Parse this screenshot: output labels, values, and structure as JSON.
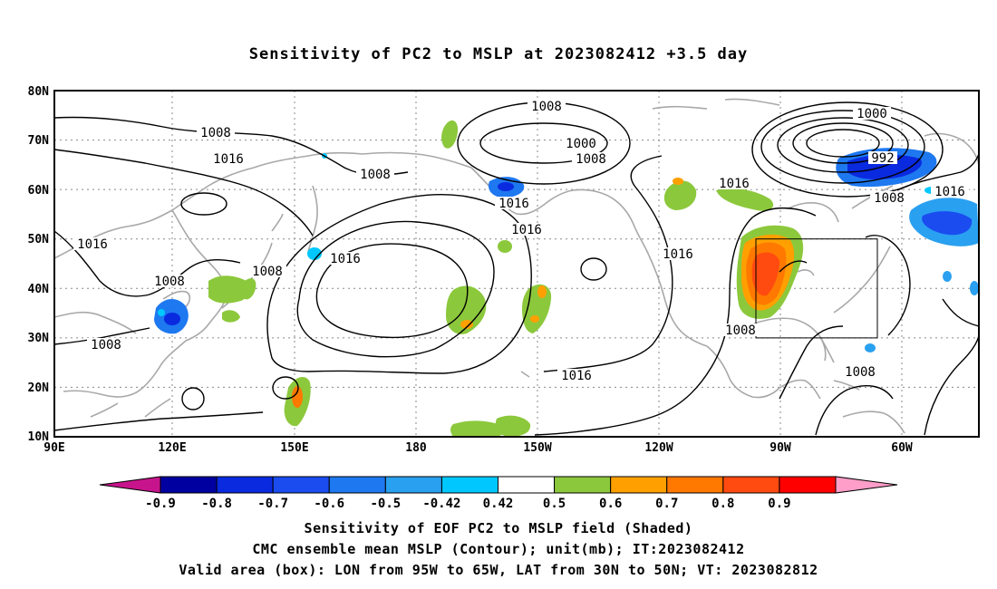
{
  "title": "Sensitivity of PC2 to MSLP at 2023082412 +3.5 day",
  "map": {
    "lat_labels": [
      "80N",
      "70N",
      "60N",
      "50N",
      "40N",
      "30N",
      "20N",
      "10N"
    ],
    "lon_labels": [
      "90E",
      "120E",
      "150E",
      "180",
      "150W",
      "120W",
      "90W",
      "60W"
    ],
    "contour_labels": [
      {
        "text": "1008",
        "id": "c1"
      },
      {
        "text": "1016",
        "id": "c2"
      },
      {
        "text": "1008",
        "id": "c3"
      },
      {
        "text": "1008",
        "id": "c4"
      },
      {
        "text": "1000",
        "id": "c5"
      },
      {
        "text": "1008",
        "id": "c6"
      },
      {
        "text": "1000",
        "id": "c7"
      },
      {
        "text": "992",
        "id": "c8"
      },
      {
        "text": "1016",
        "id": "c9"
      },
      {
        "text": "1016",
        "id": "c10"
      },
      {
        "text": "1016",
        "id": "c11"
      },
      {
        "text": "1008",
        "id": "c12"
      },
      {
        "text": "1016",
        "id": "c13"
      },
      {
        "text": "1016",
        "id": "c14"
      },
      {
        "text": "1016",
        "id": "c15"
      },
      {
        "text": "1016",
        "id": "c16"
      },
      {
        "text": "1008",
        "id": "c17"
      },
      {
        "text": "1008",
        "id": "c18"
      },
      {
        "text": "1008",
        "id": "c19"
      },
      {
        "text": "1016",
        "id": "c20"
      },
      {
        "text": "1008",
        "id": "c21"
      },
      {
        "text": "1008",
        "id": "c22"
      }
    ],
    "valid_box": {
      "lon_west": "95W",
      "lon_east": "65W",
      "lat_south": "30N",
      "lat_north": "50N"
    }
  },
  "colorbar": {
    "labels": [
      "-0.9",
      "-0.8",
      "-0.7",
      "-0.6",
      "-0.5",
      "-0.42",
      "0.42",
      "0.5",
      "0.6",
      "0.7",
      "0.8",
      "0.9"
    ],
    "colors": [
      "#0000a0",
      "#0a2ae0",
      "#1a4cf0",
      "#1e78f0",
      "#2aa0f0",
      "#00c8ff",
      "#ffffff",
      "#8cc83c",
      "#ffa000",
      "#ff7800",
      "#ff4a10",
      "#ff0000"
    ],
    "low_end_color": "#c8148c",
    "high_end_color": "#ff9ec8"
  },
  "captions": {
    "line1": "Sensitivity of EOF PC2 to MSLP field (Shaded)",
    "line2": "CMC ensemble mean MSLP (Contour); unit(mb); IT:2023082412",
    "line3": "Valid area (box): LON from 95W to 65W, LAT from 30N to 50N; VT: 2023082812"
  }
}
